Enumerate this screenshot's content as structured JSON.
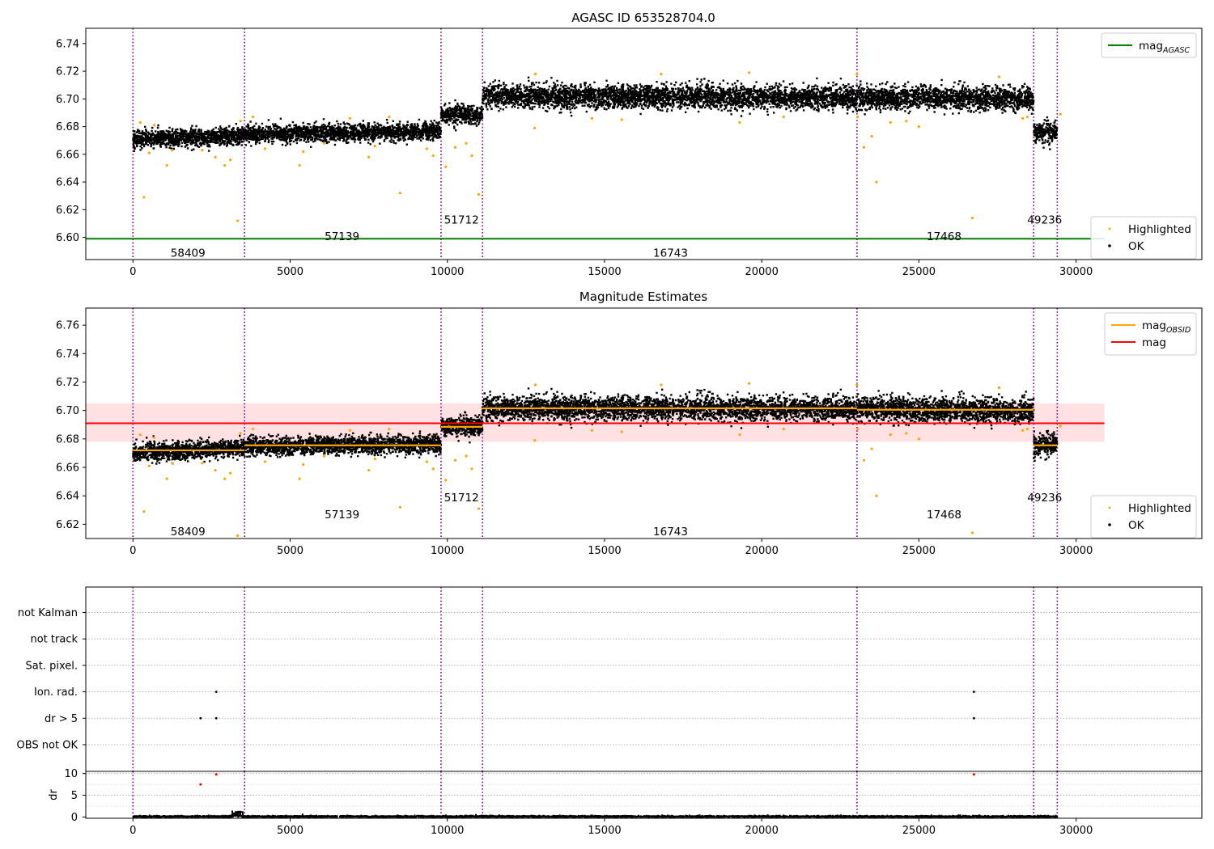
{
  "chart_data": [
    {
      "id": "agasc",
      "type": "scatter",
      "title": "AGASC ID 653528704.0",
      "xlabel": "",
      "ylabel": "",
      "xlim": [
        -1500,
        34000
      ],
      "ylim": [
        6.584,
        6.751
      ],
      "xticks": [
        0,
        5000,
        10000,
        15000,
        20000,
        25000,
        30000
      ],
      "yticks": [
        6.6,
        6.62,
        6.64,
        6.66,
        6.68,
        6.7,
        6.72,
        6.74
      ],
      "ytick_labels": [
        "6.60",
        "6.62",
        "6.64",
        "6.66",
        "6.68",
        "6.70",
        "6.72",
        "6.74"
      ],
      "legend_top": {
        "position": "upper right",
        "entries": [
          {
            "label": "mag",
            "subscript": "AGASC",
            "color": "#008000",
            "marker": "line"
          }
        ]
      },
      "legend_bottom": {
        "position": "lower right",
        "entries": [
          {
            "label": "Highlighted",
            "color": "#ffa500",
            "marker": "dot"
          },
          {
            "label": "OK",
            "color": "#000000",
            "marker": "dot"
          }
        ]
      },
      "reference_lines": [
        {
          "name": "mag AGASC",
          "value": 6.599,
          "x_range": [
            -1500,
            30900
          ],
          "color": "#008000"
        }
      ],
      "obsid_labels": [
        {
          "text": "58409",
          "x": 1750,
          "y": 6.589
        },
        {
          "text": "57139",
          "x": 6650,
          "y": 6.601
        },
        {
          "text": "51712",
          "x": 10450,
          "y": 6.613
        },
        {
          "text": "16743",
          "x": 17100,
          "y": 6.589
        },
        {
          "text": "17468",
          "x": 25800,
          "y": 6.601
        },
        {
          "text": "49236",
          "x": 29000,
          "y": 6.613
        }
      ]
    },
    {
      "id": "mag_estimates",
      "type": "scatter",
      "title": "Magnitude Estimates",
      "xlabel": "",
      "ylabel": "",
      "xlim": [
        -1500,
        34000
      ],
      "ylim": [
        6.61,
        6.772
      ],
      "xticks": [
        0,
        5000,
        10000,
        15000,
        20000,
        25000,
        30000
      ],
      "yticks": [
        6.62,
        6.64,
        6.66,
        6.68,
        6.7,
        6.72,
        6.74,
        6.76
      ],
      "ytick_labels": [
        "6.62",
        "6.64",
        "6.66",
        "6.68",
        "6.70",
        "6.72",
        "6.74",
        "6.76"
      ],
      "legend_top": {
        "position": "upper right",
        "entries": [
          {
            "label": "mag",
            "subscript": "OBSID",
            "color": "#ffa500",
            "marker": "line"
          },
          {
            "label": "mag",
            "subscript": "",
            "color": "#ff0000",
            "marker": "line"
          }
        ]
      },
      "legend_bottom": {
        "position": "lower right",
        "entries": [
          {
            "label": "Highlighted",
            "color": "#ffa500",
            "marker": "dot"
          },
          {
            "label": "OK",
            "color": "#000000",
            "marker": "dot"
          }
        ]
      },
      "mean_mag": 6.691,
      "mean_band": [
        6.678,
        6.705
      ],
      "mean_x_range": [
        -1500,
        30900
      ],
      "obsid_labels": [
        {
          "text": "58409",
          "x": 1750,
          "y": 6.615
        },
        {
          "text": "57139",
          "x": 6650,
          "y": 6.627
        },
        {
          "text": "51712",
          "x": 10450,
          "y": 6.639
        },
        {
          "text": "16743",
          "x": 17100,
          "y": 6.615
        },
        {
          "text": "17468",
          "x": 25800,
          "y": 6.627
        },
        {
          "text": "49236",
          "x": 29000,
          "y": 6.639
        }
      ]
    },
    {
      "id": "flags",
      "type": "scatter",
      "title": "",
      "xlabel": "",
      "ylabel": "",
      "xlim": [
        -1500,
        34000
      ],
      "categories": [
        "OBS not OK",
        "dr > 5",
        "Ion. rad.",
        "Sat. pixel.",
        "not track",
        "not Kalman"
      ],
      "flag_points": [
        {
          "category": "dr > 5",
          "x": 2150
        },
        {
          "category": "dr > 5",
          "x": 2650
        },
        {
          "category": "dr > 5",
          "x": 26750
        },
        {
          "category": "Ion. rad.",
          "x": 2650
        },
        {
          "category": "Ion. rad.",
          "x": 26750
        }
      ]
    },
    {
      "id": "dr",
      "type": "scatter",
      "title": "",
      "xlabel": "",
      "ylabel": "dr",
      "xlim": [
        -1500,
        34000
      ],
      "ylim": [
        -0.3,
        10.5
      ],
      "xticks": [
        0,
        5000,
        10000,
        15000,
        20000,
        25000,
        30000
      ],
      "yticks": [
        0,
        5,
        10
      ],
      "threshold": 5,
      "outliers": [
        {
          "x": 2150,
          "y": 7.5
        },
        {
          "x": 2650,
          "y": 9.8
        },
        {
          "x": 26750,
          "y": 9.8
        }
      ]
    }
  ],
  "segments": [
    {
      "obsid": "58409",
      "start": 0,
      "end": 3550,
      "center": 6.672,
      "spread": 0.0055,
      "slope": 0.003
    },
    {
      "obsid": "57139",
      "start": 3550,
      "end": 9800,
      "center": 6.6755,
      "spread": 0.0055,
      "slope": 0.002
    },
    {
      "obsid": "51712",
      "start": 9800,
      "end": 11120,
      "center": 6.6885,
      "spread": 0.006,
      "slope": 0.0
    },
    {
      "obsid": "16743",
      "start": 11120,
      "end": 23030,
      "center": 6.7015,
      "spread": 0.0075,
      "slope": -0.001
    },
    {
      "obsid": "17468",
      "start": 23030,
      "end": 28650,
      "center": 6.7005,
      "spread": 0.0075,
      "slope": -0.002
    },
    {
      "obsid": "49236",
      "start": 28650,
      "end": 29400,
      "center": 6.6755,
      "spread": 0.0065,
      "slope": 0.0
    }
  ],
  "obsid_boundaries": [
    0,
    3550,
    9800,
    11120,
    23030,
    28650,
    29400
  ],
  "highlighted_points": [
    [
      230,
      6.683
    ],
    [
      350,
      6.629
    ],
    [
      520,
      6.661
    ],
    [
      680,
      6.681
    ],
    [
      1080,
      6.652
    ],
    [
      1250,
      6.663
    ],
    [
      2200,
      6.663
    ],
    [
      2620,
      6.658
    ],
    [
      2920,
      6.652
    ],
    [
      3100,
      6.656
    ],
    [
      3330,
      6.612
    ],
    [
      3420,
      6.684
    ],
    [
      3820,
      6.687
    ],
    [
      4200,
      6.664
    ],
    [
      5300,
      6.652
    ],
    [
      5420,
      6.662
    ],
    [
      6080,
      6.668
    ],
    [
      6900,
      6.686
    ],
    [
      7500,
      6.658
    ],
    [
      7700,
      6.666
    ],
    [
      8150,
      6.687
    ],
    [
      8500,
      6.632
    ],
    [
      9350,
      6.664
    ],
    [
      9550,
      6.659
    ],
    [
      9950,
      6.651
    ],
    [
      10250,
      6.665
    ],
    [
      10600,
      6.668
    ],
    [
      10780,
      6.659
    ],
    [
      11000,
      6.631
    ],
    [
      12780,
      6.679
    ],
    [
      12800,
      6.718
    ],
    [
      14600,
      6.686
    ],
    [
      15550,
      6.685
    ],
    [
      16800,
      6.718
    ],
    [
      19300,
      6.683
    ],
    [
      19600,
      6.719
    ],
    [
      20700,
      6.687
    ],
    [
      23030,
      6.718
    ],
    [
      23050,
      6.687
    ],
    [
      23250,
      6.665
    ],
    [
      23500,
      6.673
    ],
    [
      23650,
      6.64
    ],
    [
      24100,
      6.683
    ],
    [
      24600,
      6.684
    ],
    [
      25000,
      6.68
    ],
    [
      26700,
      6.614
    ],
    [
      27550,
      6.716
    ],
    [
      28300,
      6.686
    ],
    [
      28450,
      6.687
    ],
    [
      29500,
      6.689
    ]
  ],
  "colors": {
    "ok": "#000000",
    "highlighted": "#ffa500",
    "boundary": "#800080",
    "agasc_mag": "#008000",
    "mean_mag": "#ff0000",
    "mean_band": "#ffe0e3",
    "obsid_mag": "#ffa500",
    "dr_outlier": "#ff0000"
  }
}
